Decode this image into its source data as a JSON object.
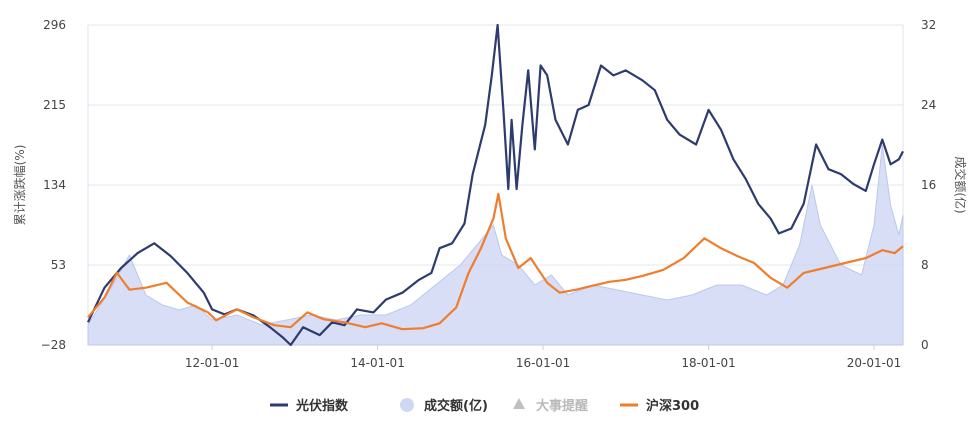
{
  "chart_data": {
    "type": "line",
    "ylabel": "累计涨跌幅(%)",
    "y2label": "成交额(亿)",
    "ylim": [
      -28,
      296
    ],
    "y2lim": [
      0,
      32
    ],
    "y_ticks": [
      "296",
      "215",
      "134",
      "53",
      "−28"
    ],
    "y2_ticks": [
      "32",
      "24",
      "16",
      "8",
      "0"
    ],
    "x_tick_labels": [
      "12-01-01",
      "14-01-01",
      "16-01-01",
      "18-01-01",
      "20-01-01"
    ],
    "x_tick_positions": [
      2012.0,
      2014.0,
      2016.0,
      2018.0,
      2020.0
    ],
    "xlim": [
      2010.5,
      2020.35
    ],
    "legend_position": "bottom",
    "legend": [
      {
        "key": "pv",
        "label": "光伏指数",
        "color": "#2e3b6e",
        "marker": "line"
      },
      {
        "key": "vol",
        "label": "成交额(亿)",
        "color": "#cfd8f3",
        "marker": "circle"
      },
      {
        "key": "evt",
        "label": "大事提醒",
        "color": "#c0c0c0",
        "marker": "triangle"
      },
      {
        "key": "hs",
        "label": "沪深300",
        "color": "#ef7d2c",
        "marker": "line"
      }
    ],
    "series": [
      {
        "name": "光伏指数",
        "axis": "left",
        "color": "#2e3b6e",
        "points": [
          [
            2010.5,
            -5
          ],
          [
            2010.7,
            30
          ],
          [
            2010.9,
            50
          ],
          [
            2011.1,
            65
          ],
          [
            2011.3,
            75
          ],
          [
            2011.5,
            62
          ],
          [
            2011.7,
            45
          ],
          [
            2011.9,
            25
          ],
          [
            2012.0,
            8
          ],
          [
            2012.15,
            3
          ],
          [
            2012.3,
            8
          ],
          [
            2012.5,
            2
          ],
          [
            2012.7,
            -10
          ],
          [
            2012.85,
            -20
          ],
          [
            2012.95,
            -28
          ],
          [
            2013.1,
            -10
          ],
          [
            2013.3,
            -18
          ],
          [
            2013.45,
            -5
          ],
          [
            2013.6,
            -8
          ],
          [
            2013.75,
            8
          ],
          [
            2013.95,
            5
          ],
          [
            2014.1,
            18
          ],
          [
            2014.3,
            25
          ],
          [
            2014.5,
            38
          ],
          [
            2014.65,
            45
          ],
          [
            2014.75,
            70
          ],
          [
            2014.9,
            75
          ],
          [
            2015.05,
            95
          ],
          [
            2015.15,
            145
          ],
          [
            2015.3,
            195
          ],
          [
            2015.38,
            245
          ],
          [
            2015.45,
            296
          ],
          [
            2015.52,
            210
          ],
          [
            2015.58,
            130
          ],
          [
            2015.62,
            200
          ],
          [
            2015.68,
            130
          ],
          [
            2015.75,
            195
          ],
          [
            2015.82,
            250
          ],
          [
            2015.9,
            170
          ],
          [
            2015.97,
            255
          ],
          [
            2016.05,
            245
          ],
          [
            2016.15,
            200
          ],
          [
            2016.3,
            175
          ],
          [
            2016.42,
            210
          ],
          [
            2016.55,
            215
          ],
          [
            2016.7,
            255
          ],
          [
            2016.85,
            245
          ],
          [
            2017.0,
            250
          ],
          [
            2017.2,
            240
          ],
          [
            2017.35,
            230
          ],
          [
            2017.5,
            200
          ],
          [
            2017.65,
            185
          ],
          [
            2017.85,
            175
          ],
          [
            2018.0,
            210
          ],
          [
            2018.15,
            190
          ],
          [
            2018.3,
            160
          ],
          [
            2018.45,
            140
          ],
          [
            2018.6,
            115
          ],
          [
            2018.75,
            100
          ],
          [
            2018.85,
            85
          ],
          [
            2019.0,
            90
          ],
          [
            2019.15,
            115
          ],
          [
            2019.3,
            175
          ],
          [
            2019.45,
            150
          ],
          [
            2019.6,
            145
          ],
          [
            2019.75,
            135
          ],
          [
            2019.9,
            128
          ],
          [
            2020.0,
            155
          ],
          [
            2020.1,
            180
          ],
          [
            2020.2,
            155
          ],
          [
            2020.3,
            160
          ],
          [
            2020.35,
            168
          ]
        ]
      },
      {
        "name": "沪深300",
        "axis": "left",
        "color": "#ef7d2c",
        "points": [
          [
            2010.5,
            0
          ],
          [
            2010.7,
            20
          ],
          [
            2010.85,
            45
          ],
          [
            2011.0,
            28
          ],
          [
            2011.2,
            30
          ],
          [
            2011.45,
            35
          ],
          [
            2011.7,
            15
          ],
          [
            2011.95,
            5
          ],
          [
            2012.05,
            -3
          ],
          [
            2012.3,
            8
          ],
          [
            2012.5,
            0
          ],
          [
            2012.75,
            -8
          ],
          [
            2012.95,
            -10
          ],
          [
            2013.15,
            5
          ],
          [
            2013.35,
            -2
          ],
          [
            2013.6,
            -5
          ],
          [
            2013.85,
            -10
          ],
          [
            2014.05,
            -6
          ],
          [
            2014.3,
            -12
          ],
          [
            2014.55,
            -11
          ],
          [
            2014.75,
            -6
          ],
          [
            2014.95,
            10
          ],
          [
            2015.1,
            45
          ],
          [
            2015.25,
            70
          ],
          [
            2015.4,
            100
          ],
          [
            2015.46,
            125
          ],
          [
            2015.55,
            80
          ],
          [
            2015.7,
            50
          ],
          [
            2015.85,
            60
          ],
          [
            2016.05,
            35
          ],
          [
            2016.2,
            25
          ],
          [
            2016.4,
            28
          ],
          [
            2016.6,
            32
          ],
          [
            2016.8,
            36
          ],
          [
            2017.0,
            38
          ],
          [
            2017.2,
            42
          ],
          [
            2017.45,
            48
          ],
          [
            2017.7,
            60
          ],
          [
            2017.95,
            80
          ],
          [
            2018.15,
            70
          ],
          [
            2018.35,
            62
          ],
          [
            2018.55,
            55
          ],
          [
            2018.75,
            40
          ],
          [
            2018.95,
            30
          ],
          [
            2019.15,
            45
          ],
          [
            2019.4,
            50
          ],
          [
            2019.65,
            55
          ],
          [
            2019.9,
            60
          ],
          [
            2020.1,
            68
          ],
          [
            2020.25,
            65
          ],
          [
            2020.35,
            72
          ]
        ]
      },
      {
        "name": "成交额(亿)",
        "axis": "right",
        "color": "#c9d3f2",
        "type": "area",
        "points": [
          [
            2010.5,
            2
          ],
          [
            2010.8,
            6
          ],
          [
            2011.0,
            9
          ],
          [
            2011.2,
            5
          ],
          [
            2011.4,
            4
          ],
          [
            2011.6,
            3.5
          ],
          [
            2011.8,
            4
          ],
          [
            2012.0,
            2.5
          ],
          [
            2012.3,
            3
          ],
          [
            2012.6,
            2
          ],
          [
            2012.9,
            2.5
          ],
          [
            2013.2,
            3
          ],
          [
            2013.5,
            2.5
          ],
          [
            2013.8,
            3
          ],
          [
            2014.1,
            3
          ],
          [
            2014.4,
            4
          ],
          [
            2014.7,
            6
          ],
          [
            2015.0,
            8
          ],
          [
            2015.2,
            10
          ],
          [
            2015.4,
            12
          ],
          [
            2015.5,
            9
          ],
          [
            2015.7,
            8
          ],
          [
            2015.9,
            6
          ],
          [
            2016.1,
            7
          ],
          [
            2016.3,
            5
          ],
          [
            2016.6,
            6
          ],
          [
            2016.9,
            5.5
          ],
          [
            2017.2,
            5
          ],
          [
            2017.5,
            4.5
          ],
          [
            2017.8,
            5
          ],
          [
            2018.1,
            6
          ],
          [
            2018.4,
            6
          ],
          [
            2018.7,
            5
          ],
          [
            2018.9,
            6
          ],
          [
            2019.1,
            10
          ],
          [
            2019.25,
            16
          ],
          [
            2019.35,
            12
          ],
          [
            2019.6,
            8
          ],
          [
            2019.85,
            7
          ],
          [
            2020.0,
            12
          ],
          [
            2020.1,
            20
          ],
          [
            2020.2,
            14
          ],
          [
            2020.3,
            11
          ],
          [
            2020.35,
            13
          ]
        ]
      }
    ]
  }
}
